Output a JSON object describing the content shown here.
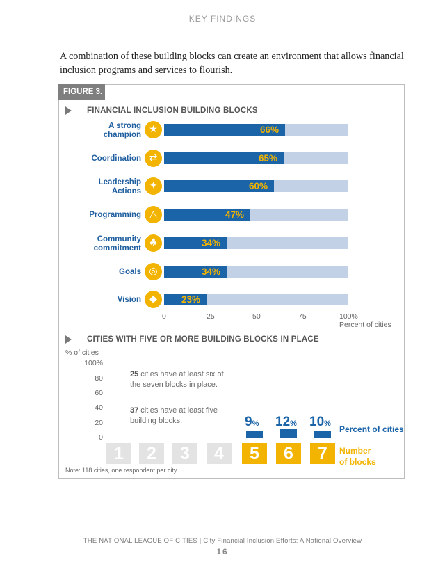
{
  "page": {
    "header": "KEY FINDINGS",
    "intro": "A combination of these building blocks can create an environment that allows financial inclusion programs and services to flourish.",
    "footer": "THE NATIONAL LEAGUE OF CITIES | City Financial Inclusion Efforts: A National Overview",
    "page_number": "16"
  },
  "figure": {
    "tag": "FIGURE 3.",
    "note": "Note: 118 cities, one respondent per city."
  },
  "colors": {
    "accent_blue": "#1b64a8",
    "bar_background": "#c3d1e6",
    "accent_yellow": "#f2b400",
    "inactive_gray": "#e3e3e3"
  },
  "chart_data": [
    {
      "type": "bar",
      "orientation": "horizontal",
      "title": "FINANCIAL INCLUSION BUILDING BLOCKS",
      "categories": [
        "A strong champion",
        "Coordination",
        "Leadership Actions",
        "Programming",
        "Community commitment",
        "Goals",
        "Vision"
      ],
      "category_lines": [
        [
          "A strong",
          "champion"
        ],
        [
          "Coordination"
        ],
        [
          "Leadership",
          "Actions"
        ],
        [
          "Programming"
        ],
        [
          "Community",
          "commitment"
        ],
        [
          "Goals"
        ],
        [
          "Vision"
        ]
      ],
      "icons": [
        "champion-icon",
        "coordination-icon",
        "leadership-icon",
        "programming-icon",
        "community-icon",
        "goals-icon",
        "vision-icon"
      ],
      "values": [
        66,
        65,
        60,
        47,
        34,
        34,
        23
      ],
      "value_labels": [
        "66%",
        "65%",
        "60%",
        "47%",
        "34%",
        "34%",
        "23%"
      ],
      "xlim": [
        0,
        100
      ],
      "xticks": [
        "0",
        "25",
        "50",
        "75",
        "100%"
      ],
      "xlabel": "Percent of cities",
      "grid": false
    },
    {
      "type": "bar",
      "title": "CITIES WITH FIVE OR MORE BUILDING BLOCKS IN PLACE",
      "ylabel": "% of cities",
      "ylim": [
        0,
        100
      ],
      "yticks": [
        "100%",
        "80",
        "60",
        "40",
        "20",
        "0"
      ],
      "categories": [
        "1",
        "2",
        "3",
        "4",
        "5",
        "6",
        "7"
      ],
      "highlighted": [
        false,
        false,
        false,
        false,
        true,
        true,
        true
      ],
      "values": [
        null,
        null,
        null,
        null,
        9,
        12,
        10
      ],
      "value_numbers": [
        "",
        "",
        "",
        "",
        "9",
        "12",
        "10"
      ],
      "value_unit": "%",
      "series_legend": "Percent of cities",
      "category_legend": [
        "Number",
        "of blocks"
      ],
      "annotations": [
        {
          "bold": "25",
          "text": " cities have at least six of the seven blocks in place."
        },
        {
          "bold": "37",
          "text": " cities have at least five building blocks."
        }
      ]
    }
  ]
}
